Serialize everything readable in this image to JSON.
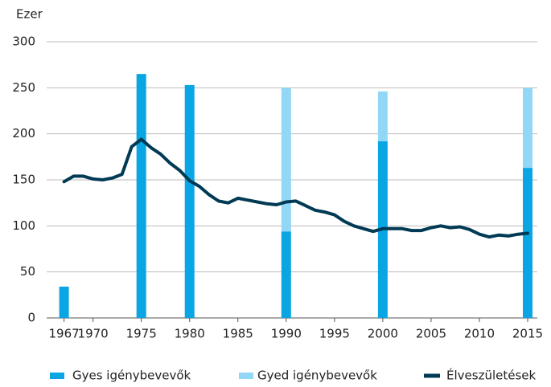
{
  "chart_data": {
    "type": "combo",
    "y_label": "Ezer",
    "xlim": [
      1965.2,
      2016
    ],
    "xticks": [
      1967,
      1970,
      1975,
      1980,
      1985,
      1990,
      1995,
      2000,
      2005,
      2010,
      2015
    ],
    "ylim": [
      0,
      300
    ],
    "yticks": [
      0,
      50,
      100,
      150,
      200,
      250,
      300
    ],
    "grid": true,
    "series": [
      {
        "name": "Gyes igénybevevők",
        "type": "bar",
        "color": "#0aa5e3",
        "x": [
          1967,
          1975,
          1980,
          1990,
          2000,
          2015
        ],
        "values": [
          34,
          265,
          253,
          94,
          192,
          163
        ]
      },
      {
        "name": "Gyed igénybevevők",
        "type": "bar",
        "color": "#92d7f5",
        "x": [
          1990,
          2000,
          2015
        ],
        "values": [
          156,
          54,
          87
        ]
      },
      {
        "name": "Élveszületések",
        "type": "line",
        "color": "#003a55",
        "x": [
          1967,
          1968,
          1969,
          1970,
          1971,
          1972,
          1973,
          1974,
          1975,
          1976,
          1977,
          1978,
          1979,
          1980,
          1981,
          1982,
          1983,
          1984,
          1985,
          1986,
          1987,
          1988,
          1989,
          1990,
          1991,
          1992,
          1993,
          1994,
          1995,
          1996,
          1997,
          1998,
          1999,
          2000,
          2001,
          2002,
          2003,
          2004,
          2005,
          2006,
          2007,
          2008,
          2009,
          2010,
          2011,
          2012,
          2013,
          2014,
          2015
        ],
        "values": [
          148,
          154,
          154,
          151,
          150,
          152,
          156,
          186,
          194,
          185,
          178,
          168,
          160,
          149,
          143,
          134,
          127,
          125,
          130,
          128,
          126,
          124,
          123,
          126,
          127,
          122,
          117,
          115,
          112,
          105,
          100,
          97,
          94,
          97,
          97,
          97,
          95,
          95,
          98,
          100,
          98,
          99,
          96,
          91,
          88,
          90,
          89,
          91,
          92
        ]
      }
    ]
  }
}
